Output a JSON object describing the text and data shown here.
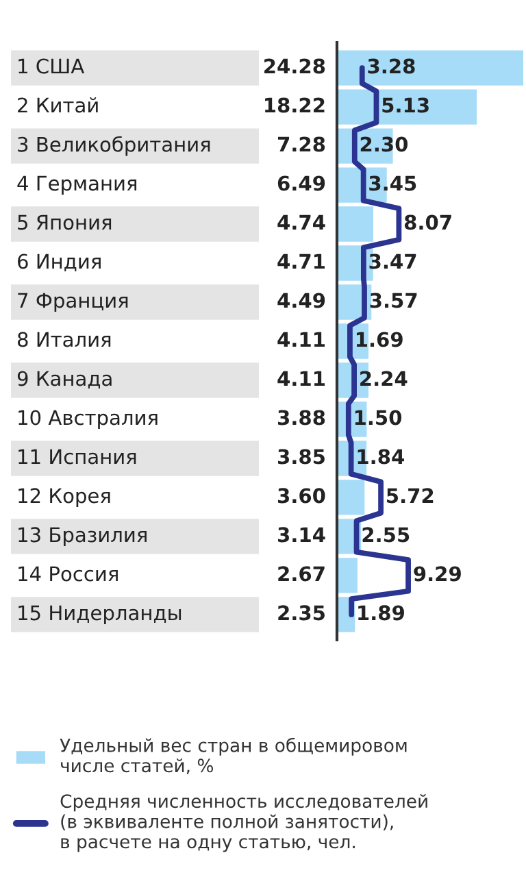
{
  "chart_data": {
    "type": "bar",
    "orientation": "horizontal",
    "categories": [
      "1 США",
      "2 Китай",
      "3 Великобритания",
      "4 Германия",
      "5 Япония",
      "6 Индия",
      "7 Франция",
      "8 Италия",
      "9 Канада",
      "10 Австралия",
      "11 Испания",
      "12 Корея",
      "13 Бразилия",
      "14 Россия",
      "15 Нидерланды"
    ],
    "series": [
      {
        "name": "Удельный вес стран в общемировом\nчисле статей, %",
        "color": "#a6dcf7",
        "values": [
          24.28,
          18.22,
          7.28,
          6.49,
          4.74,
          4.71,
          4.49,
          4.11,
          4.11,
          3.88,
          3.85,
          3.6,
          3.14,
          2.67,
          2.35
        ],
        "value_labels": [
          "24.28",
          "18.22",
          "7.28",
          "6.49",
          "4.74",
          "4.71",
          "4.49",
          "4.11",
          "4.11",
          "3.88",
          "3.85",
          "3.60",
          "3.14",
          "2.67",
          "2.35"
        ]
      },
      {
        "name": "Средняя численность исследователей\n(в эквиваленте полной занятости),\nв расчете на одну статью, чел.",
        "type": "step",
        "color": "#2b3490",
        "values": [
          3.28,
          5.13,
          2.3,
          3.45,
          8.07,
          3.47,
          3.57,
          1.69,
          2.24,
          1.5,
          1.84,
          5.72,
          2.55,
          9.29,
          1.89
        ],
        "value_labels": [
          "3.28",
          "5.13",
          "2.30",
          "3.45",
          "8.07",
          "3.47",
          "3.57",
          "1.69",
          "2.24",
          "1.50",
          "1.84",
          "5.72",
          "2.55",
          "9.29",
          "1.89"
        ]
      }
    ],
    "legend": "bottom"
  }
}
